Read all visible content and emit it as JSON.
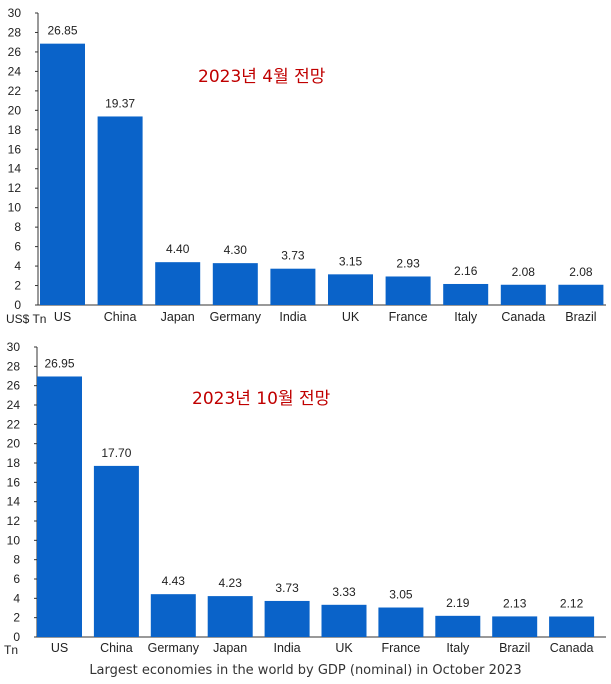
{
  "caption": "Largest economies in the world by GDP (nominal) in October 2023",
  "bar_color": "#0a63c9",
  "overlay_color": "#c00000",
  "chart_data": [
    {
      "type": "bar",
      "annotation": "2023년 4월 전망",
      "unit_label": "US$ Tn",
      "ylim": [
        0,
        30
      ],
      "yticks": [
        0,
        2,
        4,
        6,
        8,
        10,
        12,
        14,
        16,
        18,
        20,
        22,
        24,
        26,
        28,
        30
      ],
      "categories": [
        "US",
        "China",
        "Japan",
        "Germany",
        "India",
        "UK",
        "France",
        "Italy",
        "Canada",
        "Brazil"
      ],
      "values": [
        26.85,
        19.37,
        4.4,
        4.3,
        3.73,
        3.15,
        2.93,
        2.16,
        2.08,
        2.08
      ],
      "value_labels": [
        "26.85",
        "19.37",
        "4.40",
        "4.30",
        "3.73",
        "3.15",
        "2.93",
        "2.16",
        "2.08",
        "2.08"
      ]
    },
    {
      "type": "bar",
      "annotation": "2023년 10월 전망",
      "unit_label": "Tn",
      "ylim": [
        0,
        30
      ],
      "yticks": [
        0,
        2,
        4,
        6,
        8,
        10,
        12,
        14,
        16,
        18,
        20,
        22,
        24,
        26,
        28,
        30
      ],
      "categories": [
        "US",
        "China",
        "Germany",
        "Japan",
        "India",
        "UK",
        "France",
        "Italy",
        "Brazil",
        "Canada"
      ],
      "values": [
        26.95,
        17.7,
        4.43,
        4.23,
        3.73,
        3.33,
        3.05,
        2.19,
        2.13,
        2.12
      ],
      "value_labels": [
        "26.95",
        "17.70",
        "4.43",
        "4.23",
        "3.73",
        "3.33",
        "3.05",
        "2.19",
        "2.13",
        "2.12"
      ]
    }
  ]
}
